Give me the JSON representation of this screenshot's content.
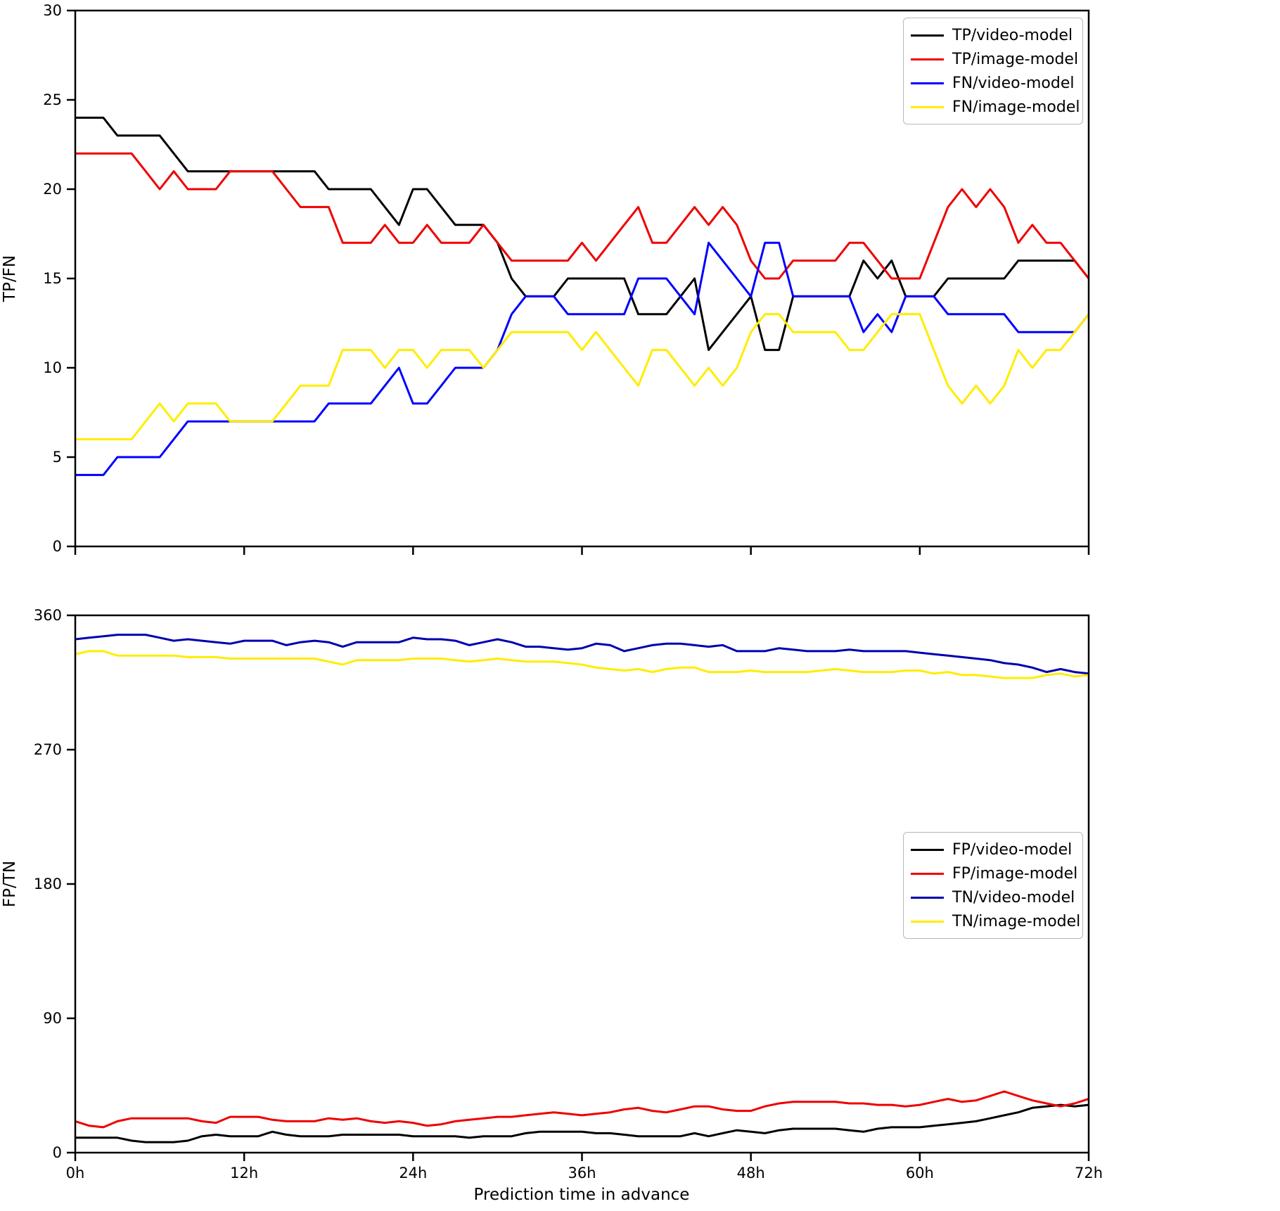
{
  "figure": {
    "xlabel": "Prediction time in advance",
    "background": "#ffffff",
    "axis_color": "#000000"
  },
  "chart_data": [
    {
      "type": "line",
      "ylabel": "TP/FN",
      "ylim": [
        0,
        30
      ],
      "yticks": [
        0,
        5,
        10,
        15,
        20,
        25,
        30
      ],
      "x_start_hours": 0,
      "x_end_hours": 72,
      "grid": false,
      "legend_position": "upper-right",
      "series": [
        {
          "name": "TP/video-model",
          "color": "#000000",
          "values": [
            24,
            24,
            24,
            23,
            23,
            23,
            23,
            22,
            21,
            21,
            21,
            21,
            21,
            21,
            21,
            21,
            21,
            21,
            20,
            20,
            20,
            20,
            19,
            18,
            20,
            20,
            19,
            18,
            18,
            18,
            17,
            15,
            14,
            14,
            14,
            15,
            15,
            15,
            15,
            15,
            13,
            13,
            13,
            14,
            15,
            11,
            12,
            13,
            14,
            11,
            11,
            14,
            14,
            14,
            14,
            14,
            16,
            15,
            16,
            14,
            14,
            14,
            15,
            15,
            15,
            15,
            15,
            16,
            16,
            16,
            16,
            16,
            15
          ]
        },
        {
          "name": "TP/image-model",
          "color": "#ee0000",
          "values": [
            22,
            22,
            22,
            22,
            22,
            21,
            20,
            21,
            20,
            20,
            20,
            21,
            21,
            21,
            21,
            20,
            19,
            19,
            19,
            17,
            17,
            17,
            18,
            17,
            17,
            18,
            17,
            17,
            17,
            18,
            17,
            16,
            16,
            16,
            16,
            16,
            17,
            16,
            17,
            18,
            19,
            17,
            17,
            18,
            19,
            18,
            19,
            18,
            16,
            15,
            15,
            16,
            16,
            16,
            16,
            17,
            17,
            16,
            15,
            15,
            15,
            17,
            19,
            20,
            19,
            20,
            19,
            17,
            18,
            17,
            17,
            16,
            15
          ]
        },
        {
          "name": "FN/video-model",
          "color": "#0000ff",
          "values": [
            4,
            4,
            4,
            5,
            5,
            5,
            5,
            6,
            7,
            7,
            7,
            7,
            7,
            7,
            7,
            7,
            7,
            7,
            8,
            8,
            8,
            8,
            9,
            10,
            8,
            8,
            9,
            10,
            10,
            10,
            11,
            13,
            14,
            14,
            14,
            13,
            13,
            13,
            13,
            13,
            15,
            15,
            15,
            14,
            13,
            17,
            16,
            15,
            14,
            17,
            17,
            14,
            14,
            14,
            14,
            14,
            12,
            13,
            12,
            14,
            14,
            14,
            13,
            13,
            13,
            13,
            13,
            12,
            12,
            12,
            12,
            12,
            13
          ]
        },
        {
          "name": "FN/image-model",
          "color": "#ffed00",
          "values": [
            6,
            6,
            6,
            6,
            6,
            7,
            8,
            7,
            8,
            8,
            8,
            7,
            7,
            7,
            7,
            8,
            9,
            9,
            9,
            11,
            11,
            11,
            10,
            11,
            11,
            10,
            11,
            11,
            11,
            10,
            11,
            12,
            12,
            12,
            12,
            12,
            11,
            12,
            11,
            10,
            9,
            11,
            11,
            10,
            9,
            10,
            9,
            10,
            12,
            13,
            13,
            12,
            12,
            12,
            12,
            11,
            11,
            12,
            13,
            13,
            13,
            11,
            9,
            8,
            9,
            8,
            9,
            11,
            10,
            11,
            11,
            12,
            13
          ]
        }
      ]
    },
    {
      "type": "line",
      "ylabel": "FP/TN",
      "ylim": [
        0,
        360
      ],
      "yticks": [
        0,
        90,
        180,
        270,
        360
      ],
      "x_start_hours": 0,
      "x_end_hours": 72,
      "grid": false,
      "legend_position": "center-right",
      "xticklabels": [
        "0h",
        "12h",
        "24h",
        "36h",
        "48h",
        "60h",
        "72h"
      ],
      "series": [
        {
          "name": "FP/video-model",
          "color": "#000000",
          "values": [
            10,
            10,
            10,
            10,
            8,
            7,
            7,
            7,
            8,
            11,
            12,
            11,
            11,
            11,
            14,
            12,
            11,
            11,
            11,
            12,
            12,
            12,
            12,
            12,
            11,
            11,
            11,
            11,
            10,
            11,
            11,
            11,
            13,
            14,
            14,
            14,
            14,
            13,
            13,
            12,
            11,
            11,
            11,
            11,
            13,
            11,
            13,
            15,
            14,
            13,
            15,
            16,
            16,
            16,
            16,
            15,
            14,
            16,
            17,
            17,
            17,
            18,
            19,
            20,
            21,
            23,
            25,
            27,
            30,
            31,
            32,
            31,
            32
          ]
        },
        {
          "name": "FP/image-model",
          "color": "#ee0000",
          "values": [
            21,
            18,
            17,
            21,
            23,
            23,
            23,
            23,
            23,
            21,
            20,
            24,
            24,
            24,
            22,
            21,
            21,
            21,
            23,
            22,
            23,
            21,
            20,
            21,
            20,
            18,
            19,
            21,
            22,
            23,
            24,
            24,
            25,
            26,
            27,
            26,
            25,
            26,
            27,
            29,
            30,
            28,
            27,
            29,
            31,
            31,
            29,
            28,
            28,
            31,
            33,
            34,
            34,
            34,
            34,
            33,
            33,
            32,
            32,
            31,
            32,
            34,
            36,
            34,
            35,
            38,
            41,
            38,
            35,
            33,
            31,
            33,
            36
          ]
        },
        {
          "name": "TN/video-model",
          "color": "#0000b0",
          "values": [
            344,
            345,
            346,
            347,
            347,
            347,
            345,
            343,
            344,
            343,
            342,
            341,
            343,
            343,
            343,
            340,
            342,
            343,
            342,
            339,
            342,
            342,
            342,
            342,
            345,
            344,
            344,
            343,
            340,
            342,
            344,
            342,
            339,
            339,
            338,
            337,
            338,
            341,
            340,
            336,
            338,
            340,
            341,
            341,
            340,
            339,
            340,
            336,
            336,
            336,
            338,
            337,
            336,
            336,
            336,
            337,
            336,
            336,
            336,
            336,
            335,
            334,
            333,
            332,
            331,
            330,
            328,
            327,
            325,
            322,
            324,
            322,
            321
          ]
        },
        {
          "name": "TN/image-model",
          "color": "#ffed00",
          "values": [
            334,
            336,
            336,
            333,
            333,
            333,
            333,
            333,
            332,
            332,
            332,
            331,
            331,
            331,
            331,
            331,
            331,
            331,
            329,
            327,
            330,
            330,
            330,
            330,
            331,
            331,
            331,
            330,
            329,
            330,
            331,
            330,
            329,
            329,
            329,
            328,
            327,
            325,
            324,
            323,
            324,
            322,
            324,
            325,
            325,
            322,
            322,
            322,
            323,
            322,
            322,
            322,
            322,
            323,
            324,
            323,
            322,
            322,
            322,
            323,
            323,
            321,
            322,
            320,
            320,
            319,
            318,
            318,
            318,
            320,
            321,
            319,
            320
          ]
        }
      ]
    }
  ],
  "layout_note_values_are_counts_per_hour": "x index i = hours in advance (0..72)"
}
